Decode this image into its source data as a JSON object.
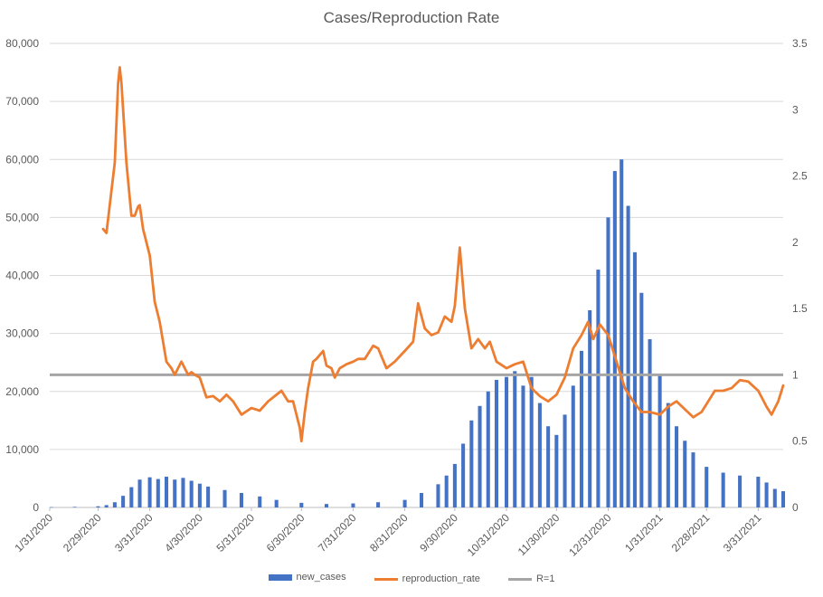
{
  "chart_data": {
    "type": "bar+line",
    "title": "Cases/Reproduction Rate",
    "xlabel": "",
    "ylabel": "",
    "x_start": "1/31/2020",
    "x_end": "4/15/2021",
    "x_tick_labels": [
      "1/31/2020",
      "2/29/2020",
      "3/31/2020",
      "4/30/2020",
      "5/31/2020",
      "6/30/2020",
      "7/31/2020",
      "8/31/2020",
      "9/30/2020",
      "10/31/2020",
      "11/30/2020",
      "12/31/2020",
      "1/31/2021",
      "2/28/2021",
      "3/31/2021"
    ],
    "y_left": {
      "min": 0,
      "max": 80000,
      "step": 10000,
      "tick_labels": [
        "0",
        "10,000",
        "20,000",
        "30,000",
        "40,000",
        "50,000",
        "60,000",
        "70,000",
        "80,000"
      ]
    },
    "y_right": {
      "min": 0,
      "max": 3.5,
      "step": 0.5,
      "tick_labels": [
        "0",
        "0.5",
        "1",
        "1.5",
        "2",
        "2.5",
        "3",
        "3.5"
      ]
    },
    "grid": true,
    "legend_position": "bottom",
    "series": [
      {
        "name": "new_cases",
        "type": "bar",
        "axis": "left",
        "color": "#4472c4",
        "points": [
          [
            "2/1/2020",
            50
          ],
          [
            "2/15/2020",
            100
          ],
          [
            "2/29/2020",
            200
          ],
          [
            "3/5/2020",
            400
          ],
          [
            "3/10/2020",
            900
          ],
          [
            "3/15/2020",
            2000
          ],
          [
            "3/20/2020",
            3500
          ],
          [
            "3/25/2020",
            4800
          ],
          [
            "3/31/2020",
            5200
          ],
          [
            "4/5/2020",
            4900
          ],
          [
            "4/10/2020",
            5300
          ],
          [
            "4/15/2020",
            4800
          ],
          [
            "4/20/2020",
            5100
          ],
          [
            "4/25/2020",
            4600
          ],
          [
            "4/30/2020",
            4100
          ],
          [
            "5/5/2020",
            3600
          ],
          [
            "5/15/2020",
            3000
          ],
          [
            "5/25/2020",
            2500
          ],
          [
            "6/5/2020",
            1900
          ],
          [
            "6/15/2020",
            1300
          ],
          [
            "6/30/2020",
            800
          ],
          [
            "7/15/2020",
            600
          ],
          [
            "7/31/2020",
            700
          ],
          [
            "8/15/2020",
            900
          ],
          [
            "8/31/2020",
            1300
          ],
          [
            "9/10/2020",
            2500
          ],
          [
            "9/20/2020",
            4000
          ],
          [
            "9/25/2020",
            5500
          ],
          [
            "9/30/2020",
            7500
          ],
          [
            "10/5/2020",
            11000
          ],
          [
            "10/10/2020",
            15000
          ],
          [
            "10/15/2020",
            17500
          ],
          [
            "10/20/2020",
            20000
          ],
          [
            "10/25/2020",
            22000
          ],
          [
            "10/31/2020",
            22500
          ],
          [
            "11/5/2020",
            23500
          ],
          [
            "11/10/2020",
            21000
          ],
          [
            "11/15/2020",
            22500
          ],
          [
            "11/20/2020",
            18000
          ],
          [
            "11/25/2020",
            14000
          ],
          [
            "11/30/2020",
            12500
          ],
          [
            "12/5/2020",
            16000
          ],
          [
            "12/10/2020",
            21000
          ],
          [
            "12/15/2020",
            27000
          ],
          [
            "12/20/2020",
            34000
          ],
          [
            "12/25/2020",
            41000
          ],
          [
            "12/31/2020",
            50000
          ],
          [
            "1/4/2021",
            58000
          ],
          [
            "1/8/2021",
            60000
          ],
          [
            "1/12/2021",
            52000
          ],
          [
            "1/16/2021",
            44000
          ],
          [
            "1/20/2021",
            37000
          ],
          [
            "1/25/2021",
            29000
          ],
          [
            "1/31/2021",
            23000
          ],
          [
            "2/5/2021",
            18000
          ],
          [
            "2/10/2021",
            14000
          ],
          [
            "2/15/2021",
            11500
          ],
          [
            "2/20/2021",
            9500
          ],
          [
            "2/28/2021",
            7000
          ],
          [
            "3/10/2021",
            6000
          ],
          [
            "3/20/2021",
            5500
          ],
          [
            "3/31/2021",
            5300
          ],
          [
            "4/5/2021",
            4300
          ],
          [
            "4/10/2021",
            3200
          ],
          [
            "4/15/2021",
            2800
          ]
        ]
      },
      {
        "name": "reproduction_rate",
        "type": "line",
        "axis": "right",
        "color": "#ed7d31",
        "points": [
          [
            "3/3/2020",
            2.1
          ],
          [
            "3/5/2020",
            2.07
          ],
          [
            "3/10/2020",
            2.6
          ],
          [
            "3/12/2020",
            3.2
          ],
          [
            "3/13/2020",
            3.32
          ],
          [
            "3/14/2020",
            3.2
          ],
          [
            "3/17/2020",
            2.6
          ],
          [
            "3/20/2020",
            2.2
          ],
          [
            "3/22/2020",
            2.2
          ],
          [
            "3/24/2020",
            2.27
          ],
          [
            "3/25/2020",
            2.28
          ],
          [
            "3/27/2020",
            2.1
          ],
          [
            "3/31/2020",
            1.9
          ],
          [
            "4/3/2020",
            1.55
          ],
          [
            "4/6/2020",
            1.4
          ],
          [
            "4/10/2020",
            1.1
          ],
          [
            "4/13/2020",
            1.05
          ],
          [
            "4/15/2020",
            1.0
          ],
          [
            "4/19/2020",
            1.1
          ],
          [
            "4/21/2020",
            1.05
          ],
          [
            "4/23/2020",
            1.0
          ],
          [
            "4/25/2020",
            1.02
          ],
          [
            "4/27/2020",
            1.0
          ],
          [
            "4/30/2020",
            0.98
          ],
          [
            "5/4/2020",
            0.83
          ],
          [
            "5/8/2020",
            0.84
          ],
          [
            "5/12/2020",
            0.8
          ],
          [
            "5/16/2020",
            0.85
          ],
          [
            "5/20/2020",
            0.8
          ],
          [
            "5/25/2020",
            0.7
          ],
          [
            "5/31/2020",
            0.75
          ],
          [
            "6/5/2020",
            0.73
          ],
          [
            "6/10/2020",
            0.8
          ],
          [
            "6/15/2020",
            0.85
          ],
          [
            "6/18/2020",
            0.88
          ],
          [
            "6/22/2020",
            0.8
          ],
          [
            "6/25/2020",
            0.8
          ],
          [
            "6/29/2020",
            0.6
          ],
          [
            "6/30/2020",
            0.5
          ],
          [
            "7/2/2020",
            0.72
          ],
          [
            "7/4/2020",
            0.9
          ],
          [
            "7/7/2020",
            1.1
          ],
          [
            "7/9/2020",
            1.12
          ],
          [
            "7/13/2020",
            1.18
          ],
          [
            "7/15/2020",
            1.07
          ],
          [
            "7/18/2020",
            1.05
          ],
          [
            "7/20/2020",
            0.98
          ],
          [
            "7/23/2020",
            1.05
          ],
          [
            "7/27/2020",
            1.08
          ],
          [
            "7/31/2020",
            1.1
          ],
          [
            "8/3/2020",
            1.12
          ],
          [
            "8/7/2020",
            1.12
          ],
          [
            "8/12/2020",
            1.22
          ],
          [
            "8/15/2020",
            1.2
          ],
          [
            "8/20/2020",
            1.05
          ],
          [
            "8/25/2020",
            1.1
          ],
          [
            "8/31/2020",
            1.18
          ],
          [
            "9/5/2020",
            1.25
          ],
          [
            "9/8/2020",
            1.54
          ],
          [
            "9/12/2020",
            1.35
          ],
          [
            "9/16/2020",
            1.3
          ],
          [
            "9/20/2020",
            1.32
          ],
          [
            "9/24/2020",
            1.44
          ],
          [
            "9/28/2020",
            1.4
          ],
          [
            "9/30/2020",
            1.52
          ],
          [
            "10/3/2020",
            1.96
          ],
          [
            "10/6/2020",
            1.5
          ],
          [
            "10/10/2020",
            1.2
          ],
          [
            "10/14/2020",
            1.27
          ],
          [
            "10/18/2020",
            1.2
          ],
          [
            "10/21/2020",
            1.25
          ],
          [
            "10/25/2020",
            1.1
          ],
          [
            "10/31/2020",
            1.05
          ],
          [
            "11/5/2020",
            1.08
          ],
          [
            "11/10/2020",
            1.1
          ],
          [
            "11/15/2020",
            0.9
          ],
          [
            "11/20/2020",
            0.84
          ],
          [
            "11/25/2020",
            0.8
          ],
          [
            "11/30/2020",
            0.85
          ],
          [
            "12/5/2020",
            0.98
          ],
          [
            "12/10/2020",
            1.2
          ],
          [
            "12/15/2020",
            1.3
          ],
          [
            "12/19/2020",
            1.4
          ],
          [
            "12/22/2020",
            1.27
          ],
          [
            "12/26/2020",
            1.38
          ],
          [
            "12/31/2020",
            1.3
          ],
          [
            "1/5/2021",
            1.1
          ],
          [
            "1/10/2021",
            0.9
          ],
          [
            "1/15/2021",
            0.8
          ],
          [
            "1/20/2021",
            0.72
          ],
          [
            "1/25/2021",
            0.72
          ],
          [
            "1/31/2021",
            0.7
          ],
          [
            "2/5/2021",
            0.76
          ],
          [
            "2/10/2021",
            0.8
          ],
          [
            "2/15/2021",
            0.74
          ],
          [
            "2/20/2021",
            0.68
          ],
          [
            "2/25/2021",
            0.72
          ],
          [
            "2/28/2021",
            0.78
          ],
          [
            "3/5/2021",
            0.88
          ],
          [
            "3/10/2021",
            0.88
          ],
          [
            "3/15/2021",
            0.9
          ],
          [
            "3/20/2021",
            0.96
          ],
          [
            "3/25/2021",
            0.95
          ],
          [
            "3/31/2021",
            0.88
          ],
          [
            "4/5/2021",
            0.76
          ],
          [
            "4/8/2021",
            0.7
          ],
          [
            "4/12/2021",
            0.8
          ],
          [
            "4/15/2021",
            0.92
          ]
        ]
      },
      {
        "name": "R=1",
        "type": "line",
        "axis": "right",
        "color": "#a5a5a5",
        "points": [
          [
            "1/31/2020",
            1
          ],
          [
            "4/15/2021",
            1
          ]
        ]
      }
    ]
  }
}
